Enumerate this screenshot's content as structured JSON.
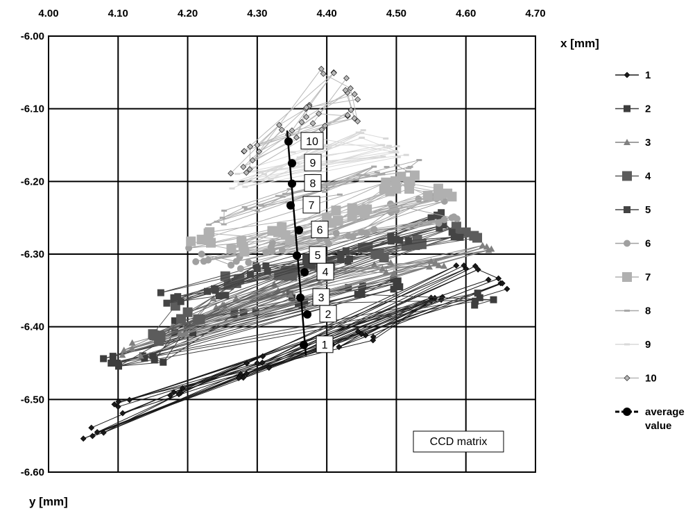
{
  "chart_data": {
    "type": "scatter",
    "x_axis": {
      "label": "y [mm]",
      "min": 4.0,
      "max": 4.7,
      "ticks": [
        "4.00",
        "4.10",
        "4.20",
        "4.30",
        "4.40",
        "4.50",
        "4.60",
        "4.70"
      ],
      "position": "top"
    },
    "y_axis": {
      "label": "x [mm]",
      "min": -6.6,
      "max": -6.0,
      "ticks": [
        "-6.00",
        "-6.10",
        "-6.20",
        "-6.30",
        "-6.40",
        "-6.50",
        "-6.60"
      ]
    },
    "grid": true,
    "legend_position": "right",
    "annotation": "CCD matrix",
    "series_styles": [
      {
        "name": "1",
        "color": "#1a1a1a",
        "marker": "diamond",
        "size": 4
      },
      {
        "name": "2",
        "color": "#3d3d3d",
        "marker": "square",
        "size": 5
      },
      {
        "name": "3",
        "color": "#808080",
        "marker": "triangle",
        "size": 5
      },
      {
        "name": "4",
        "color": "#5c5c5c",
        "marker": "square",
        "size": 7
      },
      {
        "name": "5",
        "color": "#444444",
        "marker": "square",
        "size": 5
      },
      {
        "name": "6",
        "color": "#a0a0a0",
        "marker": "circle",
        "size": 5
      },
      {
        "name": "7",
        "color": "#b0b0b0",
        "marker": "square",
        "size": 7
      },
      {
        "name": "8",
        "color": "#a8a8a8",
        "marker": "dash",
        "size": 4
      },
      {
        "name": "9",
        "color": "#d8d8d8",
        "marker": "dash",
        "size": 4
      },
      {
        "name": "10",
        "color": "#b8b8b8",
        "marker": "diamond",
        "size": 4
      }
    ],
    "series_clouds": [
      {
        "name": "1",
        "points": [
          [
            4.07,
            -6.545
          ],
          [
            4.18,
            -6.49
          ],
          [
            4.3,
            -6.45
          ],
          [
            4.45,
            -6.41
          ],
          [
            4.6,
            -6.32
          ],
          [
            4.65,
            -6.34
          ],
          [
            4.1,
            -6.51
          ],
          [
            4.28,
            -6.47
          ],
          [
            4.55,
            -6.36
          ],
          [
            4.4,
            -6.43
          ]
        ]
      },
      {
        "name": "2",
        "points": [
          [
            4.09,
            -6.45
          ],
          [
            4.2,
            -6.4
          ],
          [
            4.35,
            -6.36
          ],
          [
            4.5,
            -6.34
          ],
          [
            4.62,
            -6.36
          ],
          [
            4.15,
            -6.44
          ],
          [
            4.28,
            -6.38
          ],
          [
            4.45,
            -6.35
          ]
        ]
      },
      {
        "name": "3",
        "points": [
          [
            4.12,
            -6.43
          ],
          [
            4.25,
            -6.37
          ],
          [
            4.4,
            -6.33
          ],
          [
            4.55,
            -6.31
          ],
          [
            4.63,
            -6.29
          ],
          [
            4.18,
            -6.4
          ],
          [
            4.33,
            -6.35
          ],
          [
            4.48,
            -6.32
          ]
        ]
      },
      {
        "name": "4",
        "points": [
          [
            4.15,
            -6.41
          ],
          [
            4.27,
            -6.34
          ],
          [
            4.4,
            -6.31
          ],
          [
            4.53,
            -6.28
          ],
          [
            4.6,
            -6.27
          ],
          [
            4.2,
            -6.38
          ],
          [
            4.35,
            -6.33
          ],
          [
            4.47,
            -6.3
          ]
        ]
      },
      {
        "name": "5",
        "points": [
          [
            4.18,
            -6.36
          ],
          [
            4.3,
            -6.32
          ],
          [
            4.42,
            -6.3
          ],
          [
            4.55,
            -6.25
          ],
          [
            4.58,
            -6.27
          ],
          [
            4.24,
            -6.35
          ],
          [
            4.37,
            -6.31
          ],
          [
            4.5,
            -6.28
          ]
        ]
      },
      {
        "name": "6",
        "points": [
          [
            4.22,
            -6.3
          ],
          [
            4.32,
            -6.29
          ],
          [
            4.45,
            -6.27
          ],
          [
            4.55,
            -6.22
          ],
          [
            4.58,
            -6.25
          ],
          [
            4.27,
            -6.31
          ],
          [
            4.4,
            -6.28
          ],
          [
            4.5,
            -6.24
          ]
        ]
      },
      {
        "name": "7",
        "points": [
          [
            4.22,
            -6.28
          ],
          [
            4.33,
            -6.27
          ],
          [
            4.45,
            -6.24
          ],
          [
            4.52,
            -6.2
          ],
          [
            4.56,
            -6.22
          ],
          [
            4.28,
            -6.29
          ],
          [
            4.4,
            -6.25
          ],
          [
            4.5,
            -6.21
          ]
        ]
      },
      {
        "name": "8",
        "points": [
          [
            4.25,
            -6.25
          ],
          [
            4.33,
            -6.22
          ],
          [
            4.45,
            -6.2
          ],
          [
            4.52,
            -6.18
          ],
          [
            4.3,
            -6.24
          ],
          [
            4.4,
            -6.21
          ],
          [
            4.48,
            -6.19
          ]
        ]
      },
      {
        "name": "9",
        "points": [
          [
            4.27,
            -6.2
          ],
          [
            4.35,
            -6.17
          ],
          [
            4.45,
            -6.14
          ],
          [
            4.5,
            -6.16
          ],
          [
            4.31,
            -6.19
          ],
          [
            4.4,
            -6.15
          ],
          [
            4.48,
            -6.15
          ]
        ]
      },
      {
        "name": "10",
        "points": [
          [
            4.3,
            -6.15
          ],
          [
            4.37,
            -6.1
          ],
          [
            4.41,
            -6.05
          ],
          [
            4.44,
            -6.08
          ],
          [
            4.28,
            -6.18
          ],
          [
            4.35,
            -6.13
          ],
          [
            4.43,
            -6.11
          ],
          [
            4.38,
            -6.12
          ]
        ]
      }
    ],
    "average_value": {
      "name": "average value",
      "legend_lines": [
        "average",
        "value"
      ],
      "line_start": [
        4.343,
        -6.13
      ],
      "line_end": [
        4.37,
        -6.44
      ],
      "points": [
        {
          "label": "1",
          "y": 4.367,
          "x": -6.425
        },
        {
          "label": "2",
          "y": 4.372,
          "x": -6.383
        },
        {
          "label": "3",
          "y": 4.362,
          "x": -6.36
        },
        {
          "label": "4",
          "y": 4.368,
          "x": -6.325
        },
        {
          "label": "5",
          "y": 4.357,
          "x": -6.302
        },
        {
          "label": "6",
          "y": 4.36,
          "x": -6.267
        },
        {
          "label": "7",
          "y": 4.348,
          "x": -6.233
        },
        {
          "label": "8",
          "y": 4.35,
          "x": -6.203
        },
        {
          "label": "9",
          "y": 4.35,
          "x": -6.175
        },
        {
          "label": "10",
          "y": 4.345,
          "x": -6.145
        }
      ]
    }
  }
}
